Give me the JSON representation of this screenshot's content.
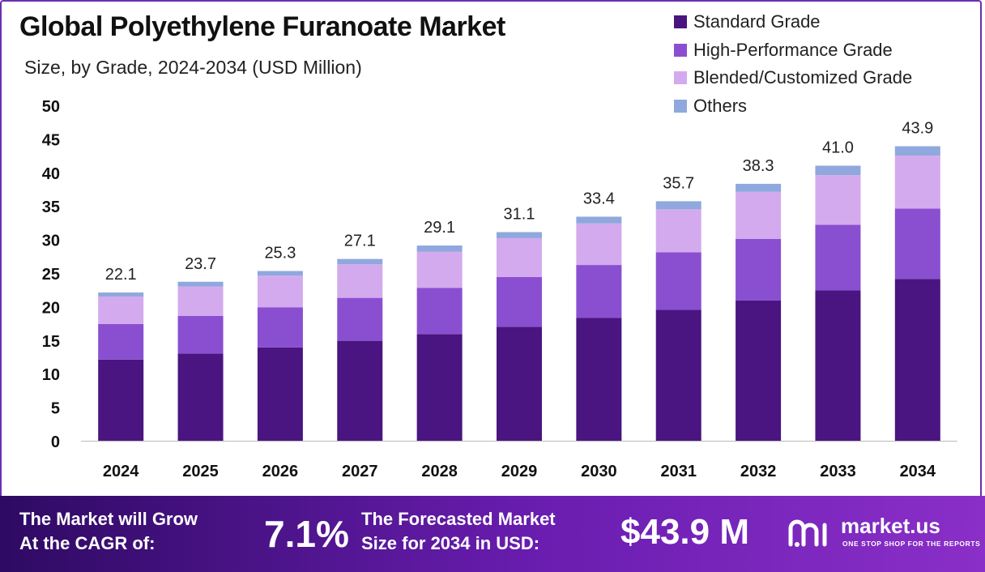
{
  "colors": {
    "standard": "#4a1580",
    "high_performance": "#8a4fd0",
    "blended": "#d4aaee",
    "others": "#8fa8dd",
    "footer": "#4a1590"
  },
  "chart_data": {
    "type": "bar",
    "stacked": true,
    "title": "Global Polyethylene Furanoate Market",
    "subtitle": "Size, by Grade, 2024-2034 (USD Million)",
    "categories": [
      "2024",
      "2025",
      "2026",
      "2027",
      "2028",
      "2029",
      "2030",
      "2031",
      "2032",
      "2033",
      "2034"
    ],
    "series": [
      {
        "name": "Standard Grade",
        "color": "#4a1580",
        "values": [
          12.1,
          13.0,
          13.9,
          14.9,
          15.9,
          17.0,
          18.3,
          19.5,
          20.9,
          22.4,
          24.1
        ]
      },
      {
        "name": "High-Performance Grade",
        "color": "#8a4fd0",
        "values": [
          5.3,
          5.6,
          6.0,
          6.4,
          6.9,
          7.4,
          7.9,
          8.6,
          9.2,
          9.8,
          10.5
        ]
      },
      {
        "name": "Blended/Customized Grade",
        "color": "#d4aaee",
        "values": [
          4.1,
          4.4,
          4.7,
          5.0,
          5.4,
          5.8,
          6.2,
          6.4,
          7.0,
          7.4,
          7.9
        ]
      },
      {
        "name": "Others",
        "color": "#8fa8dd",
        "values": [
          0.6,
          0.7,
          0.7,
          0.8,
          0.9,
          0.9,
          1.0,
          1.2,
          1.2,
          1.4,
          1.4
        ]
      }
    ],
    "totals": [
      "22.1",
      "23.7",
      "25.3",
      "27.1",
      "29.1",
      "31.1",
      "33.4",
      "35.7",
      "38.3",
      "41.0",
      "43.9"
    ],
    "yticks": [
      0,
      5,
      10,
      15,
      20,
      25,
      30,
      35,
      40,
      45,
      50
    ],
    "ylim": [
      0,
      50
    ],
    "grid": false,
    "legend_position": "top-right"
  },
  "footer": {
    "cagr_label_line1": "The Market will Grow",
    "cagr_label_line2": "At the CAGR of:",
    "cagr_value": "7.1%",
    "forecast_label_line1": "The Forecasted Market",
    "forecast_label_line2": "Size for 2034 in USD:",
    "forecast_value": "$43.9 M",
    "brand_name": "market.us",
    "brand_tagline": "ONE STOP SHOP FOR THE REPORTS",
    "brand_icon": "market-us-logo-icon"
  }
}
